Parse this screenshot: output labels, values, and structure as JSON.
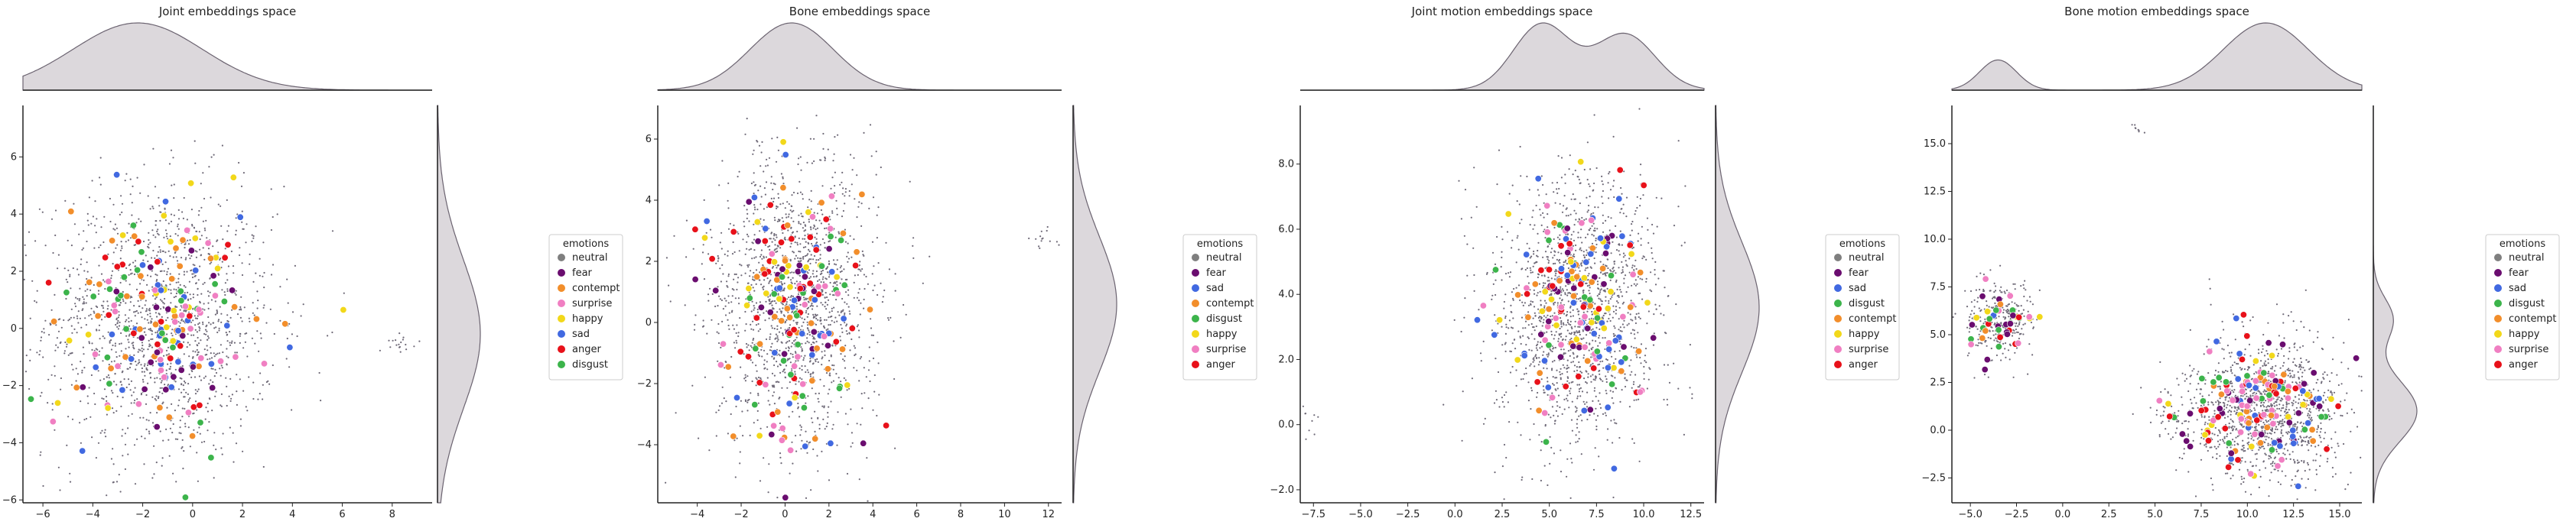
{
  "chart_data": [
    {
      "type": "scatter",
      "title": "Joint embeddings space",
      "xlim": [
        -6.8,
        9.6
      ],
      "ylim": [
        -6.1,
        7.8
      ],
      "xticks": [
        -6,
        -4,
        -2,
        0,
        2,
        4,
        6,
        8
      ],
      "yticks": [
        -6,
        -4,
        -2,
        0,
        2,
        4,
        6
      ],
      "legend": {
        "title": "emotions",
        "placement": "right",
        "entries": [
          {
            "label": "neutral",
            "color": "#7f7f7f"
          },
          {
            "label": "fear",
            "color": "#6a0d6f"
          },
          {
            "label": "contempt",
            "color": "#f28e2b"
          },
          {
            "label": "surprise",
            "color": "#f07fc2"
          },
          {
            "label": "happy",
            "color": "#f2d81a"
          },
          {
            "label": "sad",
            "color": "#4169e1"
          },
          {
            "label": "anger",
            "color": "#e8111a"
          },
          {
            "label": "disgust",
            "color": "#3cb44b"
          }
        ]
      },
      "clusters": [
        {
          "cx": -1.3,
          "cy": 0.2,
          "sx": 2.3,
          "sy": 2.4,
          "n": 1500,
          "rich": 170
        },
        {
          "cx": 8.4,
          "cy": -0.5,
          "sx": 0.3,
          "sy": 0.15,
          "n": 18,
          "rich": 0
        }
      ],
      "x_density": [
        [
          -2.2,
          2.6,
          1.0
        ]
      ],
      "y_density": [
        [
          -0.2,
          2.6,
          1.0
        ]
      ]
    },
    {
      "type": "scatter",
      "title": "Bone embeddings space",
      "xlim": [
        -5.8,
        12.6
      ],
      "ylim": [
        -5.9,
        7.1
      ],
      "xticks": [
        -4,
        -2,
        0,
        2,
        4,
        6,
        8,
        10,
        12
      ],
      "yticks": [
        -4,
        -2,
        0,
        2,
        4,
        6
      ],
      "legend": {
        "title": "emotions",
        "placement": "right",
        "entries": [
          {
            "label": "neutral",
            "color": "#7f7f7f"
          },
          {
            "label": "fear",
            "color": "#6a0d6f"
          },
          {
            "label": "sad",
            "color": "#4169e1"
          },
          {
            "label": "contempt",
            "color": "#f28e2b"
          },
          {
            "label": "disgust",
            "color": "#3cb44b"
          },
          {
            "label": "happy",
            "color": "#f2d81a"
          },
          {
            "label": "surprise",
            "color": "#f07fc2"
          },
          {
            "label": "anger",
            "color": "#e8111a"
          }
        ]
      },
      "clusters": [
        {
          "cx": 0.4,
          "cy": 0.7,
          "sx": 1.9,
          "sy": 2.3,
          "n": 1500,
          "rich": 170
        },
        {
          "cx": 11.8,
          "cy": 2.7,
          "sx": 0.3,
          "sy": 0.2,
          "n": 14,
          "rich": 0
        }
      ],
      "x_density": [
        [
          0.3,
          1.9,
          1.0
        ]
      ],
      "y_density": [
        [
          0.6,
          2.2,
          1.0
        ]
      ]
    },
    {
      "type": "scatter",
      "title": "Joint motion embeddings space",
      "xlim": [
        -8.2,
        13.2
      ],
      "ylim": [
        -2.4,
        9.8
      ],
      "xticks": [
        -7.5,
        -5.0,
        -2.5,
        0.0,
        2.5,
        5.0,
        7.5,
        10.0,
        12.5
      ],
      "tick_decimals": 1,
      "yticks": [
        -2,
        0,
        2,
        4,
        6,
        8
      ],
      "legend": {
        "title": "emotions",
        "placement": "right",
        "entries": [
          {
            "label": "neutral",
            "color": "#7f7f7f"
          },
          {
            "label": "fear",
            "color": "#6a0d6f"
          },
          {
            "label": "sad",
            "color": "#4169e1"
          },
          {
            "label": "disgust",
            "color": "#3cb44b"
          },
          {
            "label": "contempt",
            "color": "#f28e2b"
          },
          {
            "label": "happy",
            "color": "#f2d81a"
          },
          {
            "label": "surprise",
            "color": "#f07fc2"
          },
          {
            "label": "anger",
            "color": "#e8111a"
          }
        ]
      },
      "clusters": [
        {
          "cx": 6.5,
          "cy": 3.6,
          "sx": 2.2,
          "sy": 2.0,
          "n": 1500,
          "rich": 170
        },
        {
          "cx": -7.7,
          "cy": 0.2,
          "sx": 0.3,
          "sy": 0.3,
          "n": 10,
          "rich": 0
        }
      ],
      "x_density": [
        [
          4.6,
          1.5,
          1.0
        ],
        [
          9.0,
          1.6,
          0.85
        ]
      ],
      "y_density": [
        [
          3.6,
          2.0,
          1.0
        ]
      ]
    },
    {
      "type": "scatter",
      "title": "Bone motion embeddings space",
      "xlim": [
        -6.0,
        16.2
      ],
      "ylim": [
        -3.8,
        17.0
      ],
      "xticks": [
        -5.0,
        -2.5,
        0.0,
        2.5,
        5.0,
        7.5,
        10.0,
        12.5,
        15.0
      ],
      "tick_decimals": 1,
      "yticks": [
        -2.5,
        0.0,
        2.5,
        5.0,
        7.5,
        10.0,
        12.5,
        15.0
      ],
      "legend": {
        "title": "emotions",
        "placement": "right",
        "entries": [
          {
            "label": "neutral",
            "color": "#7f7f7f"
          },
          {
            "label": "fear",
            "color": "#6a0d6f"
          },
          {
            "label": "sad",
            "color": "#4169e1"
          },
          {
            "label": "disgust",
            "color": "#3cb44b"
          },
          {
            "label": "contempt",
            "color": "#f28e2b"
          },
          {
            "label": "happy",
            "color": "#f2d81a"
          },
          {
            "label": "surprise",
            "color": "#f07fc2"
          },
          {
            "label": "anger",
            "color": "#e8111a"
          }
        ]
      },
      "clusters": [
        {
          "cx": -3.5,
          "cy": 5.8,
          "sx": 0.95,
          "sy": 1.0,
          "n": 300,
          "rich": 40
        },
        {
          "cx": 11.0,
          "cy": 1.1,
          "sx": 2.2,
          "sy": 1.8,
          "n": 1200,
          "rich": 150
        },
        {
          "cx": 5.6,
          "cy": 0.8,
          "sx": 0.4,
          "sy": 0.4,
          "n": 20,
          "rich": 4
        },
        {
          "cx": 4.0,
          "cy": 15.8,
          "sx": 0.2,
          "sy": 0.15,
          "n": 8,
          "rich": 0
        }
      ],
      "x_density": [
        [
          -3.5,
          1.0,
          0.45
        ],
        [
          11.0,
          2.3,
          1.0
        ]
      ],
      "y_density": [
        [
          1.0,
          1.6,
          1.0
        ],
        [
          5.8,
          1.1,
          0.45
        ]
      ]
    }
  ]
}
